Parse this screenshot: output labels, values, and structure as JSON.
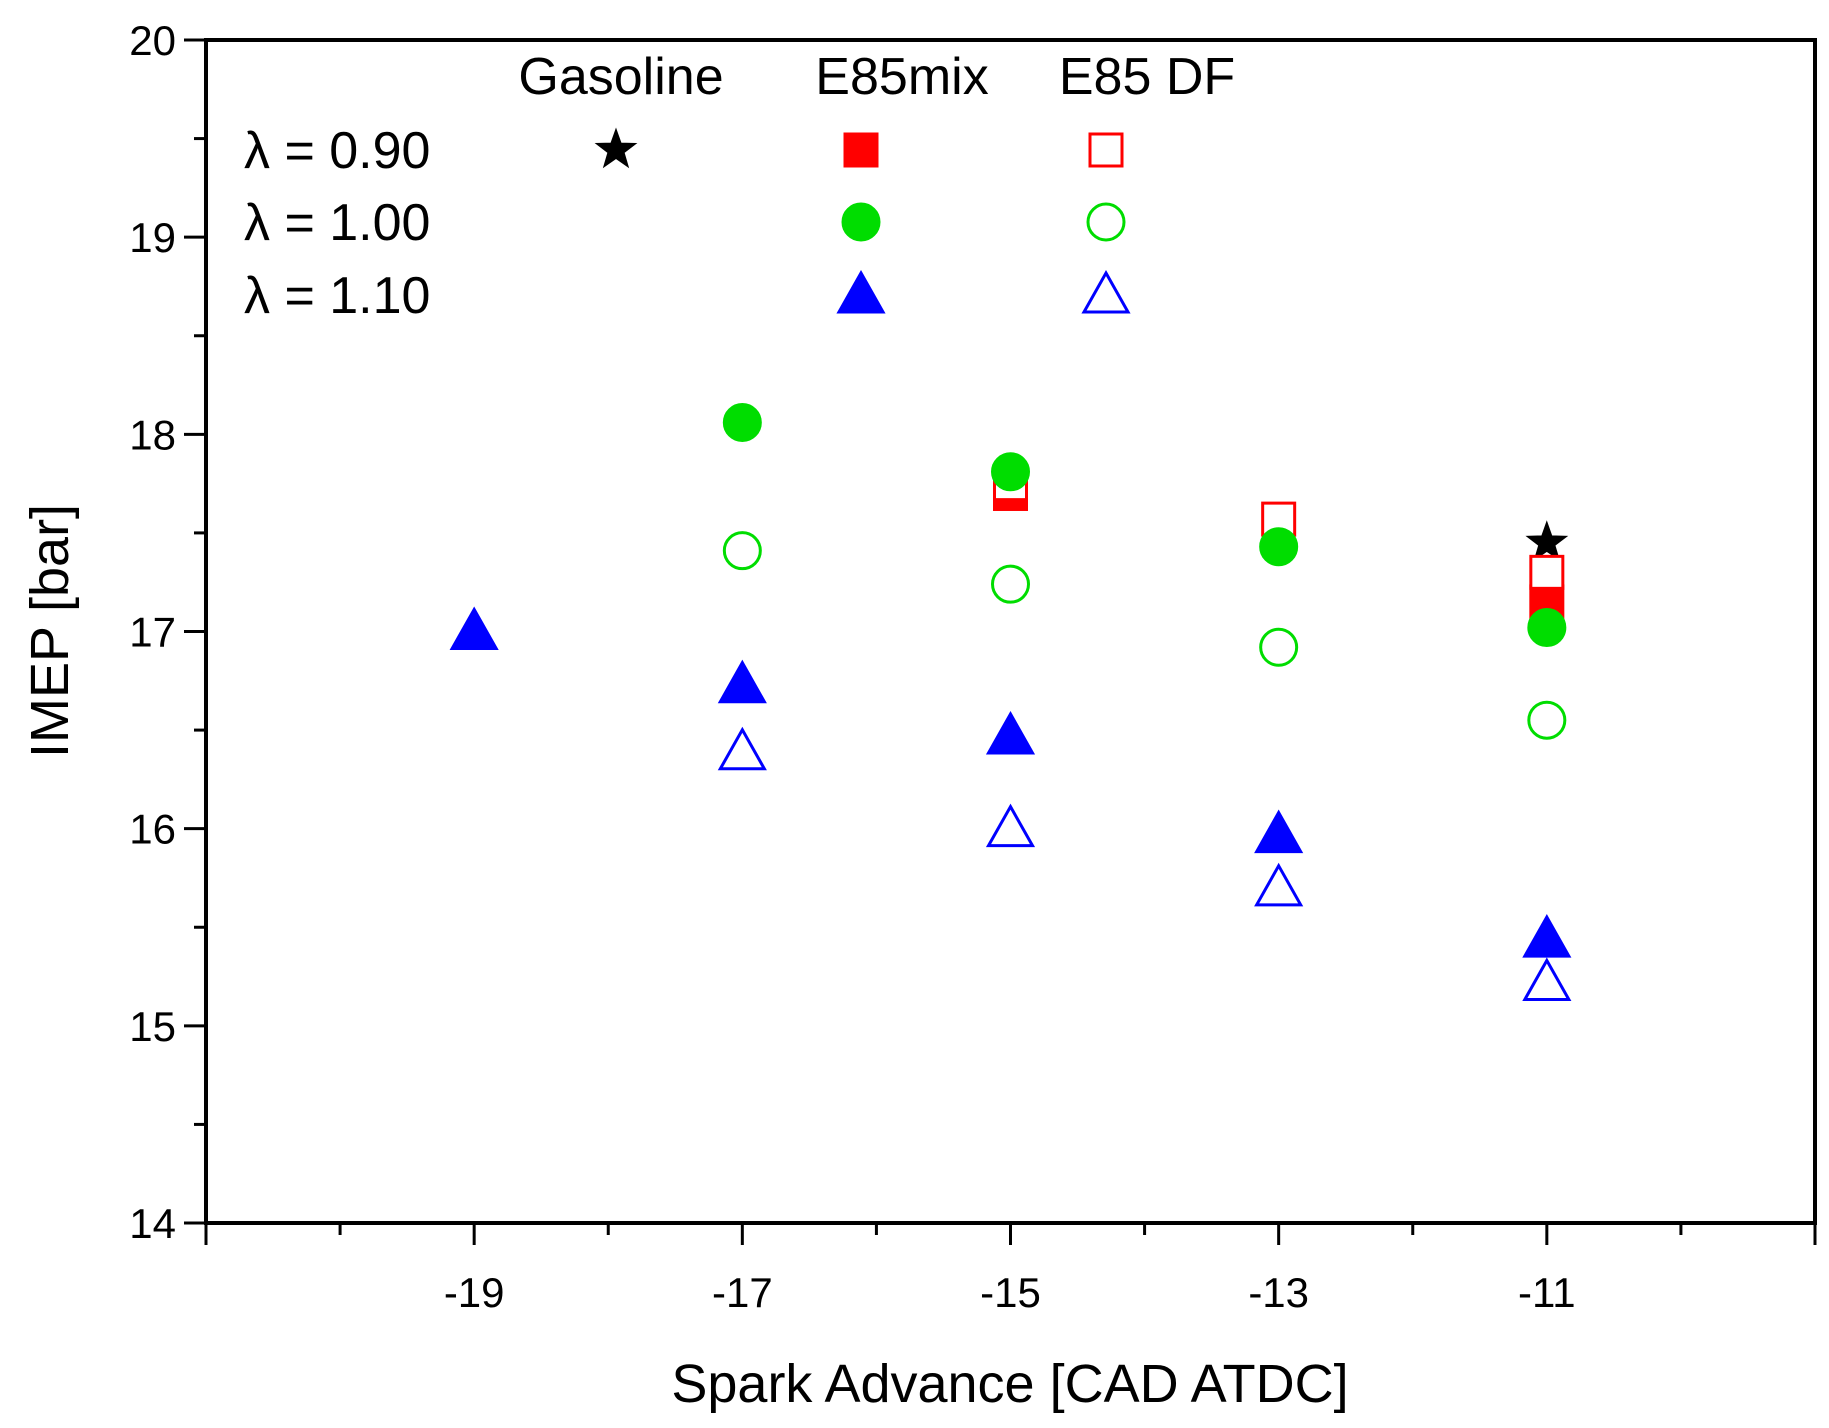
{
  "chart_data": {
    "type": "scatter",
    "title": "",
    "xlabel": "Spark Advance [CAD ATDC]",
    "ylabel": "IMEP [bar]",
    "xlim": [
      -21,
      -9
    ],
    "ylim": [
      14,
      20
    ],
    "xticks": [
      -19,
      -17,
      -15,
      -13,
      -11
    ],
    "yticks": [
      14,
      15,
      16,
      17,
      18,
      19,
      20
    ],
    "grid": false,
    "legend": {
      "placement": "top-left",
      "column_headers": [
        "Gasoline",
        "E85mix",
        "E85 DF"
      ],
      "row_labels": [
        "λ = 0.90",
        "λ = 1.00",
        "λ = 1.10"
      ]
    },
    "series": [
      {
        "name": "Gasoline λ = 0.90",
        "marker": "star",
        "filled": true,
        "color": "#000000",
        "x": [
          -11
        ],
        "y": [
          17.45
        ]
      },
      {
        "name": "E85mix λ = 0.90",
        "marker": "square",
        "filled": true,
        "color": "#ff0000",
        "x": [
          -15,
          -11
        ],
        "y": [
          17.7,
          17.15
        ]
      },
      {
        "name": "E85 DF λ = 0.90",
        "marker": "square",
        "filled": false,
        "color": "#ff0000",
        "x": [
          -15,
          -13,
          -11
        ],
        "y": [
          17.75,
          17.57,
          17.3
        ]
      },
      {
        "name": "E85mix λ = 1.00",
        "marker": "circle",
        "filled": true,
        "color": "#00dd00",
        "x": [
          -17,
          -15,
          -13,
          -11
        ],
        "y": [
          18.06,
          17.81,
          17.43,
          17.02
        ]
      },
      {
        "name": "E85 DF λ = 1.00",
        "marker": "circle",
        "filled": false,
        "color": "#00dd00",
        "x": [
          -17,
          -15,
          -13,
          -11
        ],
        "y": [
          17.41,
          17.24,
          16.92,
          16.55
        ]
      },
      {
        "name": "E85mix λ = 1.10",
        "marker": "triangle",
        "filled": true,
        "color": "#0000ff",
        "x": [
          -19,
          -17,
          -15,
          -13,
          -11
        ],
        "y": [
          17.0,
          16.73,
          16.47,
          15.97,
          15.44
        ]
      },
      {
        "name": "E85 DF λ = 1.10",
        "marker": "triangle",
        "filled": false,
        "color": "#0000ff",
        "x": [
          -17,
          -15,
          -13,
          -11
        ],
        "y": [
          16.39,
          16.0,
          15.7,
          15.22
        ]
      }
    ]
  }
}
